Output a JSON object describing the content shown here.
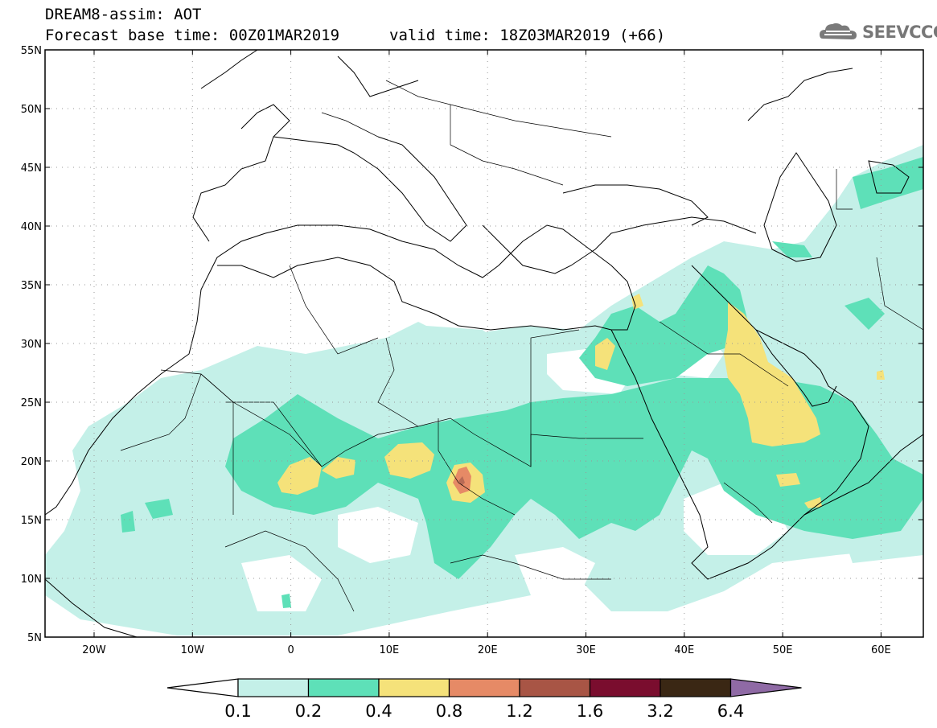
{
  "header": {
    "title": "DREAM8-assim: AOT",
    "base_time": "Forecast base time: 00Z01MAR2019",
    "valid_time": "valid time: 18Z03MAR2019 (+66)"
  },
  "logo": {
    "text": "SEEVCCC",
    "icon": "cloud-logo-icon"
  },
  "map": {
    "lat_labels": [
      "55N",
      "50N",
      "45N",
      "40N",
      "35N",
      "30N",
      "25N",
      "20N",
      "15N",
      "10N",
      "5N"
    ],
    "lon_labels": [
      "20W",
      "10W",
      "0",
      "10E",
      "20E",
      "30E",
      "40E",
      "50E",
      "60E"
    ],
    "frame_color": "#000000",
    "grid": "dotted"
  },
  "colorbar": {
    "labels": [
      "0.1",
      "0.2",
      "0.4",
      "0.8",
      "1.2",
      "1.6",
      "3.2",
      "6.4"
    ],
    "colors": [
      "#ffffff",
      "#c4f0e8",
      "#5ee0b8",
      "#f5e27a",
      "#e68a66",
      "#a85545",
      "#7a0d2e",
      "#3a2714",
      "#8f6aa5"
    ]
  }
}
